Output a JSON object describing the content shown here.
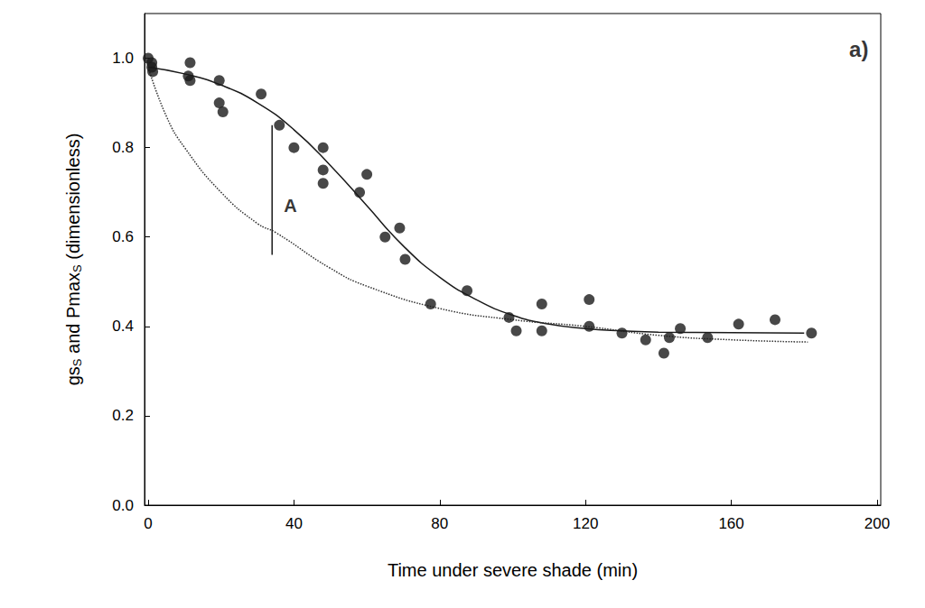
{
  "chart_data": {
    "type": "scatter",
    "xlabel": "Time under severe shade (min)",
    "ylabel": [
      {
        "text": "gs"
      },
      {
        "text": "S",
        "sub": true
      },
      {
        "text": " and Pmax"
      },
      {
        "text": "S",
        "sub": true
      },
      {
        "text": " (dimensionless)"
      }
    ],
    "xlim": [
      -1,
      201
    ],
    "xticks": [
      0,
      40,
      80,
      120,
      160,
      200
    ],
    "ylim": [
      0,
      1.1
    ],
    "yticks": [
      {
        "value": 0,
        "label": "0.0"
      },
      {
        "value": 0.2,
        "label": "0.2"
      },
      {
        "value": 0.4,
        "label": "0.4"
      },
      {
        "value": 0.6,
        "label": "0.6"
      },
      {
        "value": 0.8,
        "label": "0.8"
      },
      {
        "value": 1,
        "label": "1.0"
      }
    ],
    "grid": false,
    "series": [
      {
        "type": "scatter",
        "marker": "circle",
        "color": "#1a1a1a",
        "x": [
          0,
          1,
          1.25,
          1,
          11,
          11.5,
          11.5,
          19.5,
          19.5,
          20.5,
          31,
          36,
          40,
          48,
          48,
          48,
          58,
          60,
          65,
          69,
          70.5,
          77.5,
          87.5,
          99,
          101,
          108,
          108,
          121,
          121,
          130,
          136.5,
          141.5,
          143,
          146,
          153.5,
          162,
          172,
          182
        ],
        "values": [
          1.0,
          0.99,
          0.97,
          0.98,
          0.96,
          0.99,
          0.95,
          0.95,
          0.9,
          0.88,
          0.92,
          0.85,
          0.8,
          0.8,
          0.75,
          0.72,
          0.7,
          0.74,
          0.6,
          0.62,
          0.55,
          0.45,
          0.48,
          0.42,
          0.39,
          0.45,
          0.39,
          0.46,
          0.4,
          0.385,
          0.37,
          0.34,
          0.375,
          0.395,
          0.375,
          0.405,
          0.415,
          0.385
        ]
      },
      {
        "type": "line",
        "line_style": "solid",
        "color": "#1a1a1a",
        "x": [
          0,
          10,
          20,
          30,
          40,
          50,
          60,
          70,
          80,
          90,
          100,
          110,
          120,
          130,
          140,
          160,
          180
        ],
        "values": [
          0.98,
          0.965,
          0.94,
          0.9,
          0.84,
          0.76,
          0.67,
          0.58,
          0.51,
          0.46,
          0.425,
          0.405,
          0.395,
          0.39,
          0.387,
          0.386,
          0.385
        ]
      },
      {
        "type": "line",
        "line_style": "dotted",
        "color": "#333333",
        "x": [
          0,
          5,
          10,
          20,
          30,
          35,
          50,
          60,
          80,
          100,
          120,
          140,
          160,
          181
        ],
        "values": [
          0.98,
          0.87,
          0.8,
          0.7,
          0.63,
          0.61,
          0.53,
          0.49,
          0.44,
          0.415,
          0.4,
          0.38,
          0.37,
          0.365
        ]
      },
      {
        "type": "line",
        "line_style": "solid",
        "color": "#1a1a1a",
        "x": [
          34,
          34
        ],
        "values": [
          0.56,
          0.85
        ]
      }
    ],
    "annotations": [
      {
        "text": "A",
        "x": 39,
        "y": 0.67
      },
      {
        "text": "a)",
        "x": 195,
        "y": 1.02
      }
    ]
  }
}
